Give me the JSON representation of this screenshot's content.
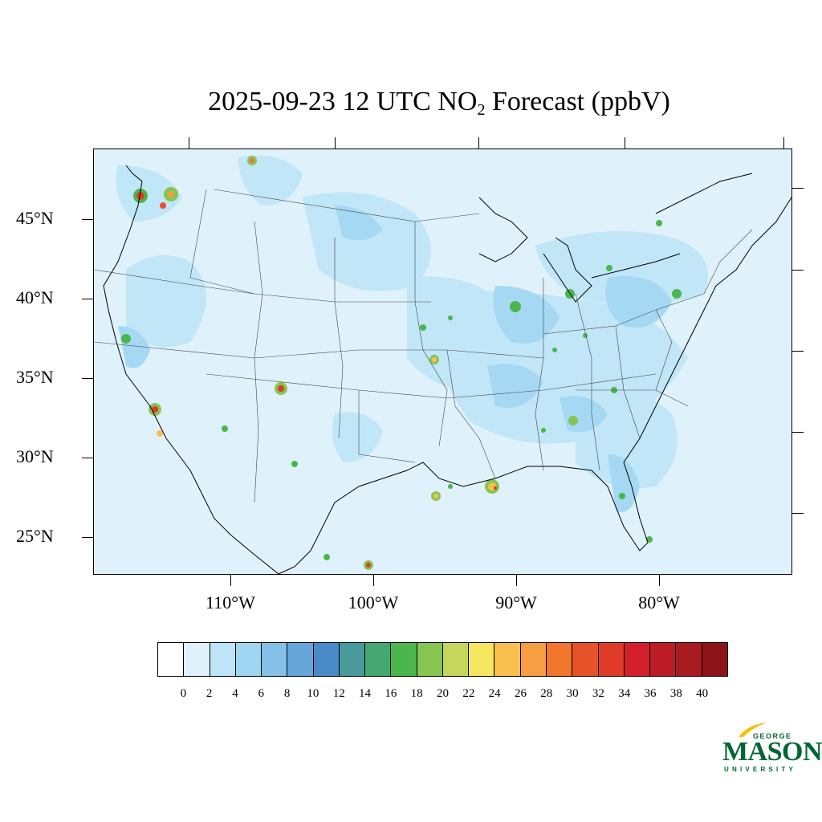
{
  "title": {
    "prefix": "2025-09-23 12 UTC NO",
    "subscript": "2",
    "suffix": " Forecast (ppbV)"
  },
  "map": {
    "background_color": "#dff1fb",
    "lat_labels": [
      "45°N",
      "40°N",
      "35°N",
      "30°N",
      "25°N"
    ],
    "lon_labels": [
      "110°W",
      "100°W",
      "90°W",
      "80°W"
    ]
  },
  "colorbar": {
    "colors": [
      "#ffffff",
      "#dff1fb",
      "#bde5f7",
      "#9fd7f3",
      "#84c0e7",
      "#67a6db",
      "#4b8ac8",
      "#4a9a9c",
      "#45a872",
      "#4bb64c",
      "#86c552",
      "#c6d65a",
      "#f5e65d",
      "#f9c04f",
      "#f79d42",
      "#f2762e",
      "#e85229",
      "#e03a28",
      "#d3202a",
      "#bb1c26",
      "#a61c21",
      "#8c1419"
    ],
    "labels": [
      "0",
      "2",
      "4",
      "6",
      "8",
      "10",
      "12",
      "14",
      "16",
      "18",
      "20",
      "22",
      "24",
      "26",
      "28",
      "30",
      "32",
      "34",
      "36",
      "38",
      "40"
    ]
  },
  "logo": {
    "line1": "GEORGE",
    "line2": "MASON",
    "line3": "UNIVERSITY",
    "color": "#006633"
  }
}
